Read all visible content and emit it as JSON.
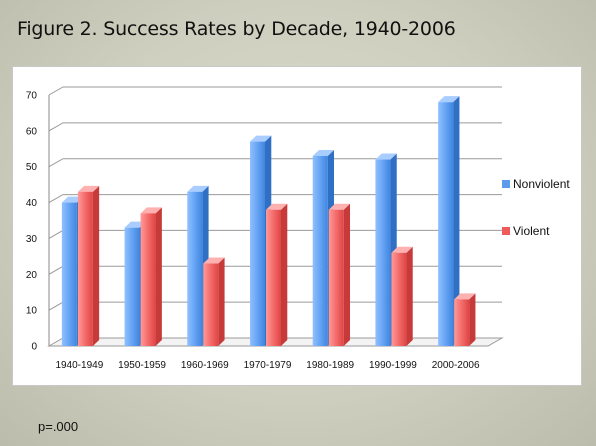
{
  "slide": {
    "title": "Figure 2. Success Rates by Decade, 1940-2006",
    "footnote": "p=.000"
  },
  "chart_data": {
    "type": "bar",
    "style": "3d-clustered-column",
    "categories": [
      "1940-1949",
      "1950-1959",
      "1960-1969",
      "1970-1979",
      "1980-1989",
      "1990-1999",
      "2000-2006"
    ],
    "series": [
      {
        "name": "Nonviolent",
        "values": [
          40,
          33,
          43,
          57,
          53,
          52,
          68
        ],
        "color": "#5b9bea"
      },
      {
        "name": "Violent",
        "values": [
          43,
          37,
          23,
          38,
          38,
          26,
          13
        ],
        "color": "#ef5a5a"
      }
    ],
    "yticks": [
      0,
      10,
      20,
      30,
      40,
      50,
      60,
      70
    ],
    "ylim": [
      0,
      70
    ],
    "grid": true,
    "legend_position": "right"
  }
}
